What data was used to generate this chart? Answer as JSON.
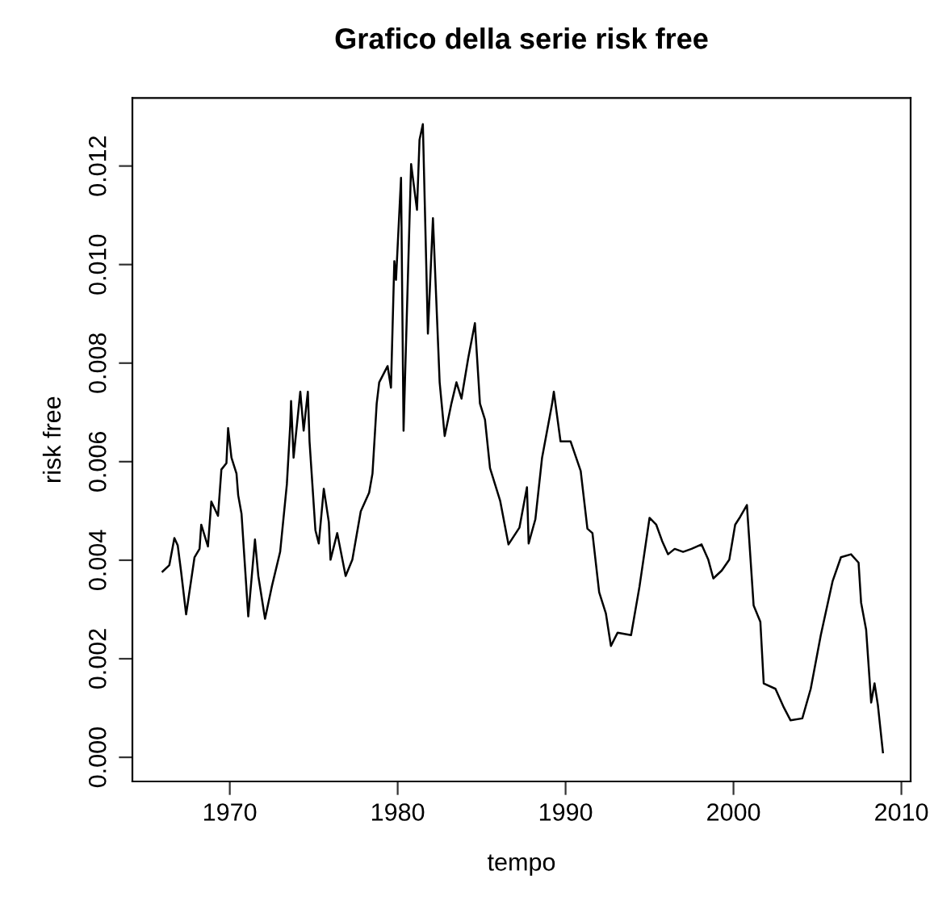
{
  "chart_data": {
    "type": "line",
    "title": "Grafico della serie risk free",
    "xlabel": "tempo",
    "ylabel": "risk free",
    "x": [
      1966.0,
      1966.4,
      1966.7,
      1966.9,
      1967.1,
      1967.4,
      1967.9,
      1968.2,
      1968.3,
      1968.7,
      1968.9,
      1969.3,
      1969.5,
      1969.8,
      1969.9,
      1970.1,
      1970.4,
      1970.5,
      1970.7,
      1971.1,
      1971.5,
      1971.7,
      1972.1,
      1972.5,
      1973.0,
      1973.4,
      1973.6,
      1973.65,
      1973.8,
      1974.2,
      1974.4,
      1974.65,
      1974.75,
      1975.1,
      1975.3,
      1975.6,
      1975.9,
      1976.0,
      1976.4,
      1976.9,
      1977.3,
      1977.8,
      1978.3,
      1978.5,
      1978.75,
      1978.9,
      1979.4,
      1979.6,
      1979.8,
      1979.9,
      1980.2,
      1980.35,
      1980.8,
      1981.15,
      1981.3,
      1981.5,
      1981.8,
      1982.1,
      1982.5,
      1982.8,
      1983.2,
      1983.5,
      1983.8,
      1984.2,
      1984.6,
      1984.9,
      1985.2,
      1985.5,
      1986.1,
      1986.6,
      1987.25,
      1987.7,
      1987.8,
      1988.2,
      1988.6,
      1989.2,
      1989.3,
      1989.7,
      1990.3,
      1990.9,
      1991.3,
      1991.6,
      1992.0,
      1992.4,
      1992.7,
      1993.1,
      1993.9,
      1994.4,
      1995.0,
      1995.4,
      1995.75,
      1996.1,
      1996.5,
      1997.0,
      1997.5,
      1998.1,
      1998.5,
      1998.8,
      1999.3,
      1999.75,
      2000.1,
      2000.4,
      2000.8,
      2001.2,
      2001.6,
      2001.8,
      2002.5,
      2003.0,
      2003.4,
      2004.1,
      2004.6,
      2005.2,
      2005.9,
      2006.4,
      2007.0,
      2007.45,
      2007.6,
      2007.9,
      2008.2,
      2008.4,
      2008.6,
      2008.9
    ],
    "series": [
      {
        "color": "#000000",
        "values": [
          0.00377,
          0.0039,
          0.00445,
          0.0043,
          0.00377,
          0.0029,
          0.00406,
          0.00423,
          0.00472,
          0.00428,
          0.00519,
          0.0049,
          0.00584,
          0.00597,
          0.00668,
          0.00608,
          0.00576,
          0.00532,
          0.00494,
          0.00286,
          0.00442,
          0.00368,
          0.00281,
          0.00346,
          0.00417,
          0.00554,
          0.00674,
          0.00723,
          0.00608,
          0.00742,
          0.00663,
          0.00742,
          0.00641,
          0.00461,
          0.00434,
          0.00545,
          0.00477,
          0.00401,
          0.00455,
          0.00368,
          0.00401,
          0.00499,
          0.00537,
          0.00576,
          0.00718,
          0.00761,
          0.00794,
          0.0075,
          0.01007,
          0.00969,
          0.01176,
          0.00663,
          0.01204,
          0.01111,
          0.01253,
          0.01285,
          0.0086,
          0.01094,
          0.00761,
          0.00652,
          0.00718,
          0.00761,
          0.00728,
          0.0081,
          0.00881,
          0.00718,
          0.00685,
          0.00587,
          0.00521,
          0.00432,
          0.00466,
          0.00548,
          0.00434,
          0.00483,
          0.00608,
          0.00718,
          0.00742,
          0.00641,
          0.00641,
          0.00581,
          0.00464,
          0.00455,
          0.00335,
          0.00292,
          0.00226,
          0.00253,
          0.00248,
          0.00346,
          0.00486,
          0.00472,
          0.00439,
          0.00412,
          0.00423,
          0.00417,
          0.00423,
          0.00432,
          0.00401,
          0.00363,
          0.00379,
          0.00401,
          0.00472,
          0.00488,
          0.00512,
          0.00308,
          0.00275,
          0.0015,
          0.00139,
          0.00101,
          0.00075,
          0.00079,
          0.00139,
          0.00248,
          0.00357,
          0.00406,
          0.00412,
          0.00395,
          0.00314,
          0.00259,
          0.00111,
          0.0015,
          0.00106,
          0.0001
        ]
      }
    ],
    "xlim": [
      1964.2,
      2010.55
    ],
    "xticks": [
      1970,
      1980,
      1990,
      2000,
      2010
    ],
    "ylim": [
      -0.00049,
      0.01338
    ],
    "yticks": [
      {
        "value": 0,
        "label": "0.000"
      },
      {
        "value": 0.002,
        "label": "0.002"
      },
      {
        "value": 0.004,
        "label": "0.004"
      },
      {
        "value": 0.006,
        "label": "0.006"
      },
      {
        "value": 0.008,
        "label": "0.008"
      },
      {
        "value": 0.01,
        "label": "0.010"
      },
      {
        "value": 0.012,
        "label": "0.012"
      }
    ],
    "grid": false,
    "marker": "none",
    "line_style": "solid"
  }
}
